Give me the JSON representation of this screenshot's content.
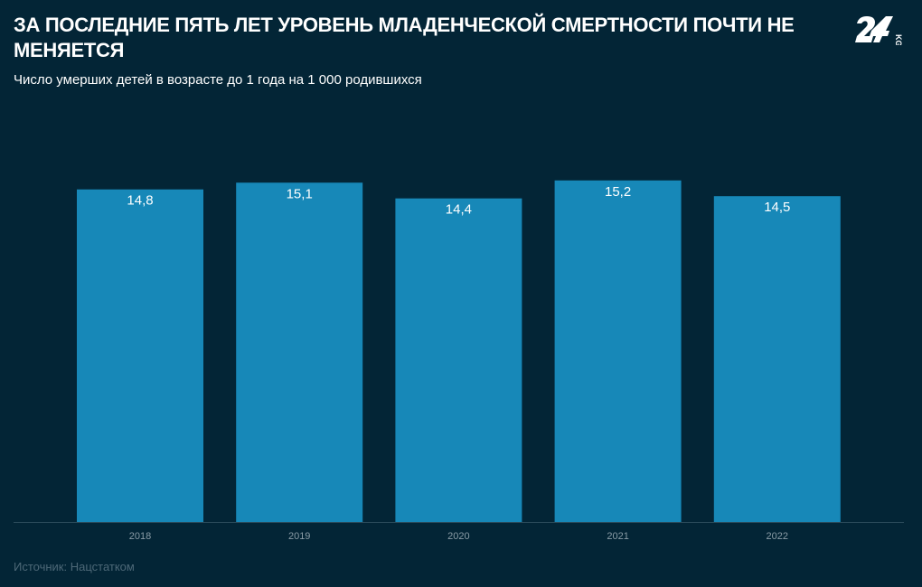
{
  "title": "ЗА ПОСЛЕДНИЕ ПЯТЬ ЛЕТ УРОВЕНЬ МЛАДЕНЧЕСКОЙ СМЕРТНОСТИ ПОЧТИ НЕ МЕНЯЕТСЯ",
  "subtitle": "Число умерших детей в возрасте до 1 года на 1 000 родившихся",
  "source": "Источник: Нацстатком",
  "logo_text": "24 KG",
  "colors": {
    "background": "#032536",
    "bar": "#1788b8",
    "axis": "#2c4c5c",
    "tick_label": "#8a9ca6"
  },
  "chart_data": {
    "type": "bar",
    "categories": [
      "2018",
      "2019",
      "2020",
      "2021",
      "2022"
    ],
    "values": [
      14.8,
      15.1,
      14.4,
      15.2,
      14.5
    ],
    "data_labels": [
      "14,8",
      "15,1",
      "14,4",
      "15,2",
      "14,5"
    ],
    "ylim": [
      0,
      17
    ],
    "grid": false,
    "legend": "none"
  }
}
